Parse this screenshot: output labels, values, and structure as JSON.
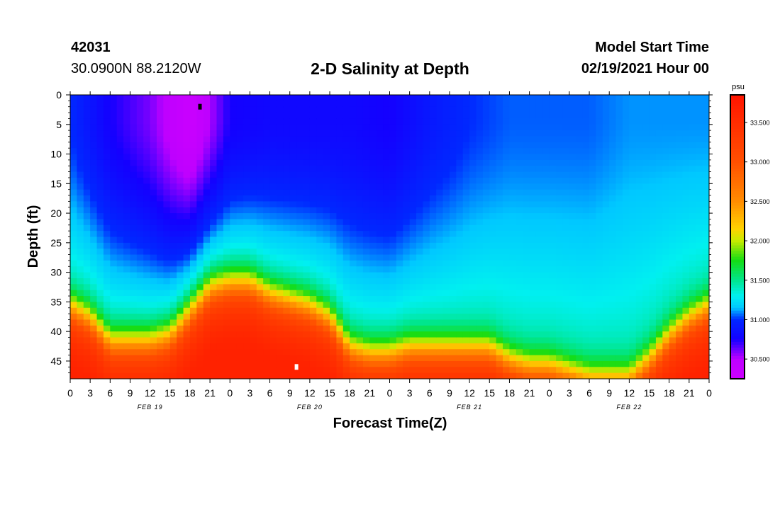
{
  "header": {
    "station_id": "42031",
    "location": "30.0900N 88.2120W",
    "title": "2-D Salinity at Depth",
    "start_label": "Model Start Time",
    "start_value": "02/19/2021 Hour 00"
  },
  "chart_data": {
    "type": "heatmap",
    "title": "2-D Salinity at Depth",
    "xlabel": "Forecast Time(Z)",
    "ylabel": "Depth (ft)",
    "x_hours": [
      0,
      96
    ],
    "x_tick_labels": [
      "0",
      "3",
      "6",
      "9",
      "12",
      "15",
      "18",
      "21",
      "0",
      "3",
      "6",
      "9",
      "12",
      "15",
      "18",
      "21",
      "0",
      "3",
      "6",
      "9",
      "12",
      "15",
      "18",
      "21",
      "0",
      "3",
      "6",
      "9",
      "12",
      "15",
      "18",
      "21",
      "0"
    ],
    "date_labels": [
      {
        "text": "FEB 19",
        "hour": 12
      },
      {
        "text": "FEB 20",
        "hour": 36
      },
      {
        "text": "FEB 21",
        "hour": 60
      },
      {
        "text": "FEB 22",
        "hour": 84
      }
    ],
    "y_ticks": [
      0,
      5,
      10,
      15,
      20,
      25,
      30,
      35,
      40,
      45
    ],
    "ylim": [
      0,
      48
    ],
    "colorbar": {
      "unit": "psu",
      "min": 30.25,
      "max": 33.85,
      "tick_labels": [
        "33.500",
        "33.000",
        "32.500",
        "32.000",
        "31.500",
        "31.000",
        "30.500"
      ],
      "tick_values": [
        33.5,
        33.0,
        32.5,
        32.0,
        31.5,
        31.0,
        30.5
      ]
    },
    "halocline_depth_ft": {
      "hours": [
        0,
        3,
        6,
        9,
        12,
        15,
        18,
        21,
        24,
        27,
        30,
        33,
        36,
        39,
        42,
        45,
        48,
        51,
        54,
        57,
        60,
        63,
        66,
        69,
        72,
        75,
        78,
        81,
        84,
        87,
        90,
        93,
        96
      ],
      "depth": [
        36,
        38,
        42,
        42,
        42,
        41,
        37,
        33,
        32,
        32,
        34,
        35,
        36,
        38,
        43,
        44,
        44,
        43,
        43,
        43,
        43,
        43,
        45,
        46,
        46,
        47,
        48,
        48,
        48,
        45,
        41,
        38,
        36
      ]
    },
    "surface_layer_min_salinity": {
      "hours": [
        0,
        6,
        12,
        18,
        24,
        30,
        36,
        42,
        48,
        54,
        60,
        66,
        72,
        78,
        84,
        90,
        96
      ],
      "values": [
        31.0,
        30.75,
        30.6,
        30.3,
        30.75,
        30.8,
        30.8,
        30.8,
        30.75,
        30.9,
        31.0,
        31.05,
        31.05,
        31.05,
        31.1,
        31.1,
        31.1
      ]
    },
    "markers": [
      {
        "hour": 19.5,
        "depth_ft": 2,
        "color": "#000000"
      },
      {
        "hour": 34.0,
        "depth_ft": 46,
        "color": "#ffffff"
      }
    ]
  }
}
